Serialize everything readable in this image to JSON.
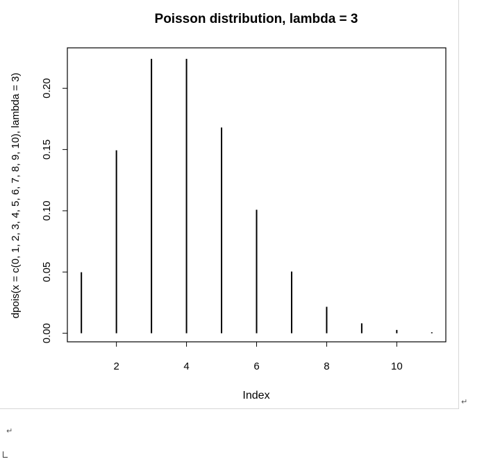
{
  "chart_data": {
    "type": "bar",
    "title": "Poisson distribution, lambda = 3",
    "xlabel": "Index",
    "ylabel": "dpois(x = c(0, 1, 2, 3, 4, 5, 6, 7, 8, 9, 10), lambda = 3)",
    "x": [
      1,
      2,
      3,
      4,
      5,
      6,
      7,
      8,
      9,
      10,
      11
    ],
    "values": [
      0.0498,
      0.1494,
      0.224,
      0.224,
      0.168,
      0.1008,
      0.0504,
      0.0216,
      0.0081,
      0.0027,
      0.0008
    ],
    "xlim": [
      0.6,
      11.4
    ],
    "ylim": [
      -0.007,
      0.233
    ],
    "x_ticks": [
      2,
      4,
      6,
      8,
      10
    ],
    "x_tick_labels": [
      "2",
      "4",
      "6",
      "8",
      "10"
    ],
    "y_ticks": [
      0.0,
      0.05,
      0.1,
      0.15,
      0.2
    ],
    "y_tick_labels": [
      "0.00",
      "0.05",
      "0.10",
      "0.15",
      "0.20"
    ],
    "grid": false,
    "legend": "none"
  },
  "page": {
    "return_mark": "↵",
    "cursor_mark": "↵"
  }
}
